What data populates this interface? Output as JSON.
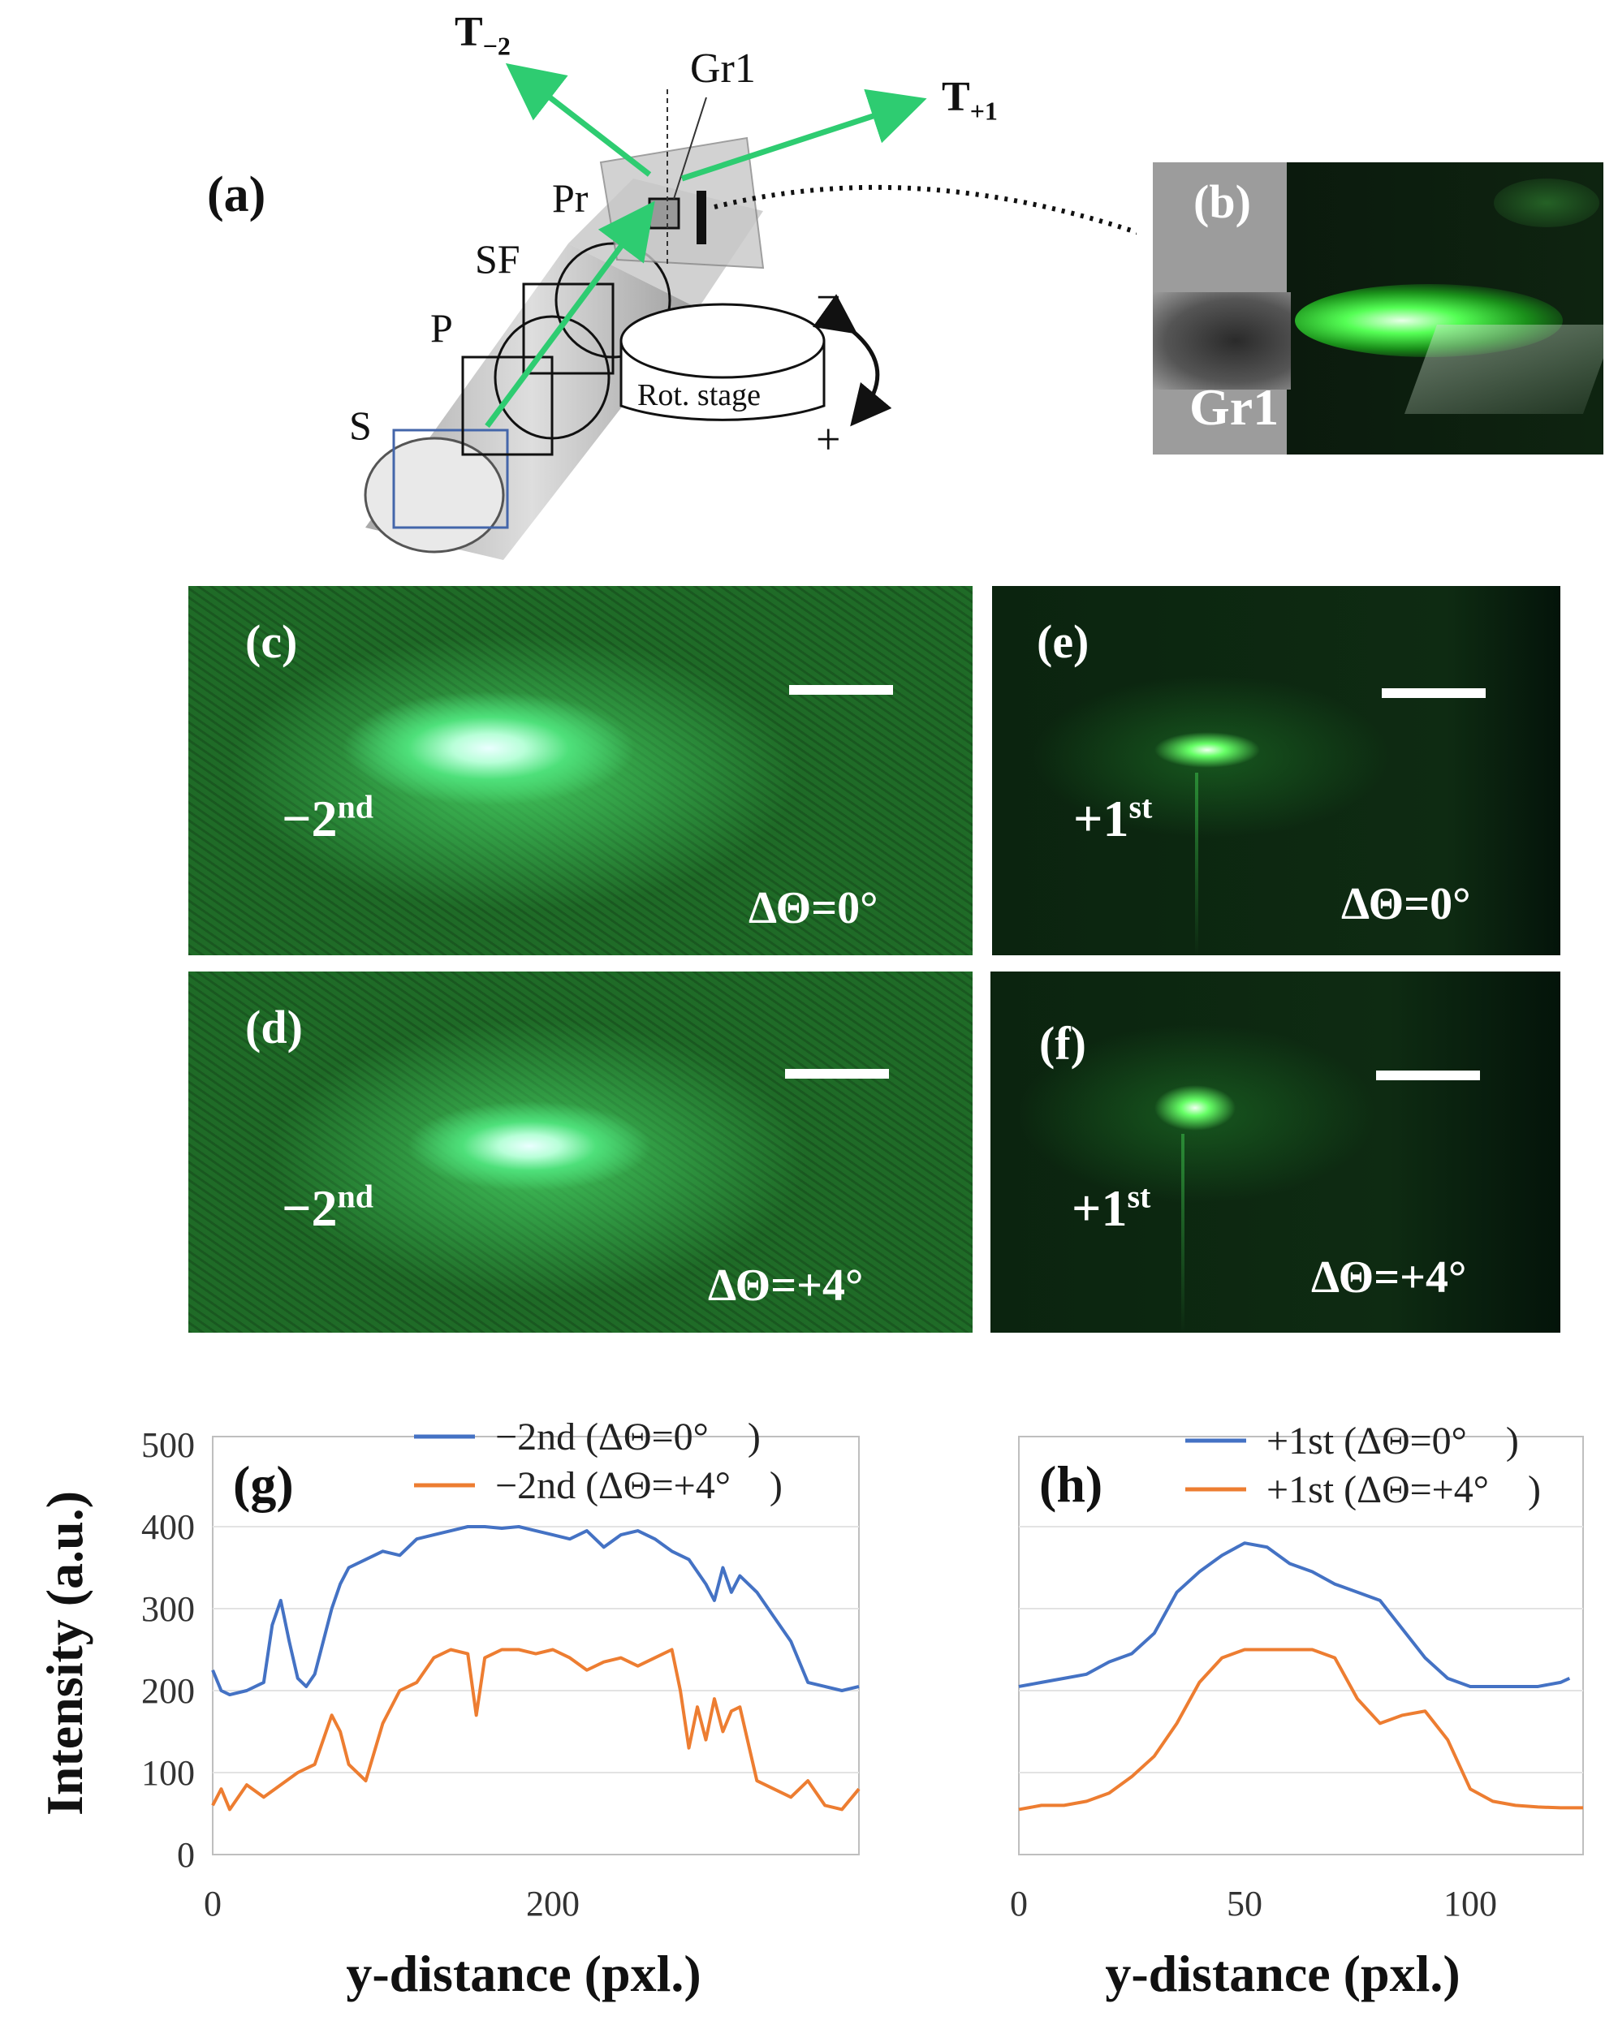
{
  "panel_a": {
    "label": "(a)",
    "beam_left": "T",
    "beam_left_sub": "−2",
    "beam_right": "T",
    "beam_right_sub": "+1",
    "grating": "Gr1",
    "prism": "Pr",
    "sf": "SF",
    "p": "P",
    "s": "S",
    "stage": "Rot. stage",
    "minus": "−",
    "plus": "+"
  },
  "panel_b": {
    "label": "(b)",
    "text": "Gr1"
  },
  "photos": [
    {
      "id": "c",
      "label": "(c)",
      "order": "−2",
      "order_sup": "nd",
      "angle": "ΔΘ=0°"
    },
    {
      "id": "d",
      "label": "(d)",
      "order": "−2",
      "order_sup": "nd",
      "angle": "ΔΘ=+4°"
    },
    {
      "id": "e",
      "label": "(e)",
      "order": "+1",
      "order_sup": "st",
      "angle": "ΔΘ=0°"
    },
    {
      "id": "f",
      "label": "(f)",
      "order": "+1",
      "order_sup": "st",
      "angle": "ΔΘ=+4°"
    }
  ],
  "colors": {
    "blue": "#4472C4",
    "orange": "#ED7D31",
    "beam": "#2ecc71"
  },
  "chart_data": [
    {
      "type": "line",
      "panel_label": "(g)",
      "xlabel": "y-distance (pxl.)",
      "ylabel": "Intensity (a.u.)",
      "xlim": [
        0,
        380
      ],
      "ylim": [
        0,
        500
      ],
      "xticks": [
        0,
        200
      ],
      "yticks": [
        0,
        100,
        200,
        300,
        400,
        500
      ],
      "series": [
        {
          "name": "−2nd (ΔΘ=0°　)",
          "x": [
            0,
            5,
            10,
            20,
            30,
            35,
            40,
            45,
            50,
            55,
            60,
            70,
            75,
            80,
            90,
            100,
            110,
            120,
            130,
            140,
            150,
            160,
            170,
            180,
            190,
            200,
            210,
            220,
            230,
            240,
            250,
            260,
            270,
            280,
            290,
            295,
            300,
            305,
            310,
            320,
            330,
            340,
            350,
            360,
            370,
            380
          ],
          "values": [
            225,
            200,
            195,
            200,
            210,
            280,
            310,
            260,
            215,
            205,
            220,
            300,
            330,
            350,
            360,
            370,
            365,
            385,
            390,
            395,
            400,
            400,
            398,
            400,
            395,
            390,
            385,
            395,
            375,
            390,
            395,
            385,
            370,
            360,
            330,
            310,
            350,
            320,
            340,
            320,
            290,
            260,
            210,
            205,
            200,
            205
          ]
        },
        {
          "name": "−2nd (ΔΘ=+4°　)",
          "x": [
            0,
            5,
            10,
            20,
            30,
            40,
            50,
            60,
            70,
            75,
            80,
            85,
            90,
            100,
            110,
            120,
            130,
            140,
            150,
            155,
            160,
            170,
            180,
            190,
            200,
            210,
            220,
            230,
            240,
            250,
            260,
            270,
            275,
            280,
            285,
            290,
            295,
            300,
            305,
            310,
            320,
            330,
            340,
            350,
            360,
            370,
            380
          ],
          "values": [
            60,
            80,
            55,
            85,
            70,
            85,
            100,
            110,
            170,
            150,
            110,
            100,
            90,
            160,
            200,
            210,
            240,
            250,
            245,
            170,
            240,
            250,
            250,
            245,
            250,
            240,
            225,
            235,
            240,
            230,
            240,
            250,
            200,
            130,
            180,
            140,
            190,
            150,
            175,
            180,
            90,
            80,
            70,
            90,
            60,
            55,
            80
          ]
        }
      ]
    },
    {
      "type": "line",
      "panel_label": "(h)",
      "xlabel": "y-distance (pxl.)",
      "ylabel": "",
      "xlim": [
        0,
        125
      ],
      "ylim": [
        0,
        500
      ],
      "xticks": [
        0,
        50,
        100
      ],
      "series": [
        {
          "name": "+1st (ΔΘ=0°　)",
          "x": [
            0,
            5,
            10,
            15,
            20,
            25,
            30,
            35,
            40,
            45,
            50,
            55,
            60,
            65,
            70,
            75,
            80,
            85,
            90,
            95,
            100,
            105,
            110,
            115,
            120,
            122
          ],
          "values": [
            205,
            210,
            215,
            220,
            235,
            245,
            270,
            320,
            345,
            365,
            380,
            375,
            355,
            345,
            330,
            320,
            310,
            275,
            240,
            215,
            205,
            205,
            205,
            205,
            210,
            215
          ]
        },
        {
          "name": "+1st (ΔΘ=+4°　)",
          "x": [
            0,
            5,
            10,
            15,
            20,
            25,
            30,
            35,
            40,
            45,
            50,
            55,
            60,
            65,
            70,
            75,
            80,
            85,
            90,
            95,
            100,
            105,
            110,
            115,
            120,
            125
          ],
          "values": [
            55,
            60,
            60,
            65,
            75,
            95,
            120,
            160,
            210,
            240,
            250,
            250,
            250,
            250,
            240,
            190,
            160,
            170,
            175,
            140,
            80,
            65,
            60,
            58,
            57,
            57
          ]
        }
      ]
    }
  ]
}
